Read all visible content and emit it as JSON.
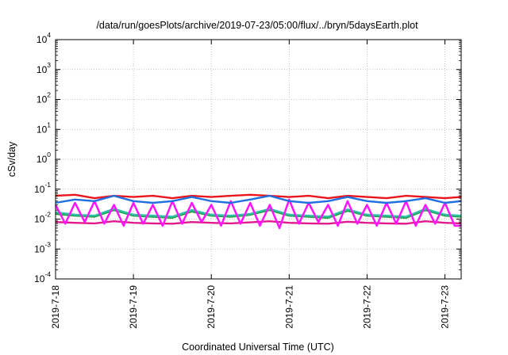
{
  "chart_data": {
    "type": "line",
    "title": "/data/run/goesPlots/archive/2019-07-23/05:00/flux/../bryn/5daysEarth.plot",
    "xlabel": "Coordinated Universal Time (UTC)",
    "ylabel": "cSv/day",
    "yscale": "log",
    "ylim": [
      0.0001,
      10000
    ],
    "y_ticks": [
      {
        "base": "10",
        "exp": "-4",
        "value": 0.0001
      },
      {
        "base": "10",
        "exp": "-3",
        "value": 0.001
      },
      {
        "base": "10",
        "exp": "-2",
        "value": 0.01
      },
      {
        "base": "10",
        "exp": "-1",
        "value": 0.1
      },
      {
        "base": "10",
        "exp": "0",
        "value": 1
      },
      {
        "base": "10",
        "exp": "1",
        "value": 10
      },
      {
        "base": "10",
        "exp": "2",
        "value": 100
      },
      {
        "base": "10",
        "exp": "3",
        "value": 1000
      },
      {
        "base": "10",
        "exp": "4",
        "value": 10000
      }
    ],
    "x_ticks": [
      "2019-7-18",
      "2019-7-19",
      "2019-7-20",
      "2019-7-21",
      "2019-7-22",
      "2019-7-23"
    ],
    "xlim": [
      "2019-07-18T00:00",
      "2019-07-23T05:00"
    ],
    "grid": true,
    "legend": "none",
    "series": [
      {
        "color": "#e8161c",
        "x": [
          "2019-07-18T00:00",
          "2019-07-18T06:00",
          "2019-07-18T12:00",
          "2019-07-18T18:00",
          "2019-07-19T00:00",
          "2019-07-19T06:00",
          "2019-07-19T12:00",
          "2019-07-19T18:00",
          "2019-07-20T00:00",
          "2019-07-20T06:00",
          "2019-07-20T12:00",
          "2019-07-20T18:00",
          "2019-07-21T00:00",
          "2019-07-21T06:00",
          "2019-07-21T12:00",
          "2019-07-21T18:00",
          "2019-07-22T00:00",
          "2019-07-22T06:00",
          "2019-07-22T12:00",
          "2019-07-22T18:00",
          "2019-07-23T00:00",
          "2019-07-23T05:00"
        ],
        "values": [
          0.06,
          0.065,
          0.05,
          0.06,
          0.055,
          0.06,
          0.05,
          0.06,
          0.055,
          0.06,
          0.065,
          0.06,
          0.055,
          0.06,
          0.05,
          0.06,
          0.055,
          0.05,
          0.06,
          0.055,
          0.05,
          0.055
        ]
      },
      {
        "color": "#1e9e3c",
        "x": [
          "2019-07-18T00:00",
          "2019-07-18T06:00",
          "2019-07-18T12:00",
          "2019-07-18T18:00",
          "2019-07-19T00:00",
          "2019-07-19T06:00",
          "2019-07-19T12:00",
          "2019-07-19T18:00",
          "2019-07-20T00:00",
          "2019-07-20T06:00",
          "2019-07-20T12:00",
          "2019-07-20T18:00",
          "2019-07-21T00:00",
          "2019-07-21T06:00",
          "2019-07-21T12:00",
          "2019-07-21T18:00",
          "2019-07-22T00:00",
          "2019-07-22T06:00",
          "2019-07-22T12:00",
          "2019-07-22T18:00",
          "2019-07-23T00:00",
          "2019-07-23T05:00"
        ],
        "values": [
          0.015,
          0.013,
          0.012,
          0.02,
          0.013,
          0.012,
          0.011,
          0.018,
          0.013,
          0.012,
          0.014,
          0.02,
          0.013,
          0.012,
          0.011,
          0.019,
          0.013,
          0.012,
          0.011,
          0.02,
          0.013,
          0.012
        ]
      },
      {
        "color": "#2dbfa5",
        "x": [
          "2019-07-18T00:00",
          "2019-07-18T06:00",
          "2019-07-18T12:00",
          "2019-07-18T18:00",
          "2019-07-19T00:00",
          "2019-07-19T06:00",
          "2019-07-19T12:00",
          "2019-07-19T18:00",
          "2019-07-20T00:00",
          "2019-07-20T06:00",
          "2019-07-20T12:00",
          "2019-07-20T18:00",
          "2019-07-21T00:00",
          "2019-07-21T06:00",
          "2019-07-21T12:00",
          "2019-07-21T18:00",
          "2019-07-22T00:00",
          "2019-07-22T06:00",
          "2019-07-22T12:00",
          "2019-07-22T18:00",
          "2019-07-23T00:00",
          "2019-07-23T05:00"
        ],
        "values": [
          0.017,
          0.014,
          0.013,
          0.022,
          0.014,
          0.013,
          0.012,
          0.02,
          0.014,
          0.013,
          0.015,
          0.022,
          0.014,
          0.013,
          0.012,
          0.021,
          0.014,
          0.013,
          0.012,
          0.022,
          0.014,
          0.013
        ]
      },
      {
        "color": "#e01a8c",
        "x": [
          "2019-07-18T00:00",
          "2019-07-18T06:00",
          "2019-07-18T12:00",
          "2019-07-18T18:00",
          "2019-07-19T00:00",
          "2019-07-19T06:00",
          "2019-07-19T12:00",
          "2019-07-19T18:00",
          "2019-07-20T00:00",
          "2019-07-20T06:00",
          "2019-07-20T12:00",
          "2019-07-20T18:00",
          "2019-07-21T00:00",
          "2019-07-21T06:00",
          "2019-07-21T12:00",
          "2019-07-21T18:00",
          "2019-07-22T00:00",
          "2019-07-22T06:00",
          "2019-07-22T12:00",
          "2019-07-22T18:00",
          "2019-07-23T00:00",
          "2019-07-23T05:00"
        ],
        "values": [
          0.008,
          0.0075,
          0.0072,
          0.0085,
          0.0075,
          0.0072,
          0.007,
          0.008,
          0.0075,
          0.0072,
          0.0078,
          0.0085,
          0.0075,
          0.0072,
          0.007,
          0.0082,
          0.0075,
          0.0072,
          0.007,
          0.0085,
          0.0075,
          0.0072
        ]
      },
      {
        "color": "#ff14ff",
        "x": [
          "2019-07-18T00:00",
          "2019-07-18T03:00",
          "2019-07-18T06:00",
          "2019-07-18T09:00",
          "2019-07-18T12:00",
          "2019-07-18T15:00",
          "2019-07-18T18:00",
          "2019-07-18T21:00",
          "2019-07-19T00:00",
          "2019-07-19T03:00",
          "2019-07-19T06:00",
          "2019-07-19T09:00",
          "2019-07-19T12:00",
          "2019-07-19T15:00",
          "2019-07-19T18:00",
          "2019-07-19T21:00",
          "2019-07-20T00:00",
          "2019-07-20T03:00",
          "2019-07-20T06:00",
          "2019-07-20T09:00",
          "2019-07-20T12:00",
          "2019-07-20T15:00",
          "2019-07-20T18:00",
          "2019-07-20T21:00",
          "2019-07-21T00:00",
          "2019-07-21T03:00",
          "2019-07-21T06:00",
          "2019-07-21T09:00",
          "2019-07-21T12:00",
          "2019-07-21T15:00",
          "2019-07-21T18:00",
          "2019-07-21T21:00",
          "2019-07-22T00:00",
          "2019-07-22T03:00",
          "2019-07-22T06:00",
          "2019-07-22T09:00",
          "2019-07-22T12:00",
          "2019-07-22T15:00",
          "2019-07-22T18:00",
          "2019-07-22T21:00",
          "2019-07-23T00:00",
          "2019-07-23T03:00",
          "2019-07-23T05:00"
        ],
        "values": [
          0.03,
          0.007,
          0.035,
          0.008,
          0.04,
          0.007,
          0.03,
          0.006,
          0.035,
          0.007,
          0.03,
          0.006,
          0.04,
          0.007,
          0.035,
          0.008,
          0.03,
          0.006,
          0.04,
          0.007,
          0.035,
          0.006,
          0.03,
          0.005,
          0.045,
          0.007,
          0.035,
          0.008,
          0.03,
          0.006,
          0.04,
          0.007,
          0.03,
          0.006,
          0.035,
          0.007,
          0.04,
          0.006,
          0.03,
          0.007,
          0.035,
          0.006,
          0.006
        ]
      },
      {
        "color": "#1f6fe0",
        "x": [
          "2019-07-18T00:00",
          "2019-07-18T06:00",
          "2019-07-18T12:00",
          "2019-07-18T18:00",
          "2019-07-19T00:00",
          "2019-07-19T06:00",
          "2019-07-19T12:00",
          "2019-07-19T18:00",
          "2019-07-20T00:00",
          "2019-07-20T06:00",
          "2019-07-20T12:00",
          "2019-07-20T18:00",
          "2019-07-21T00:00",
          "2019-07-21T06:00",
          "2019-07-21T12:00",
          "2019-07-21T18:00",
          "2019-07-22T00:00",
          "2019-07-22T06:00",
          "2019-07-22T12:00",
          "2019-07-22T18:00",
          "2019-07-23T00:00",
          "2019-07-23T05:00"
        ],
        "values": [
          0.035,
          0.045,
          0.04,
          0.06,
          0.04,
          0.035,
          0.04,
          0.055,
          0.04,
          0.035,
          0.045,
          0.06,
          0.04,
          0.035,
          0.04,
          0.055,
          0.04,
          0.035,
          0.04,
          0.05,
          0.035,
          0.04
        ]
      }
    ]
  }
}
